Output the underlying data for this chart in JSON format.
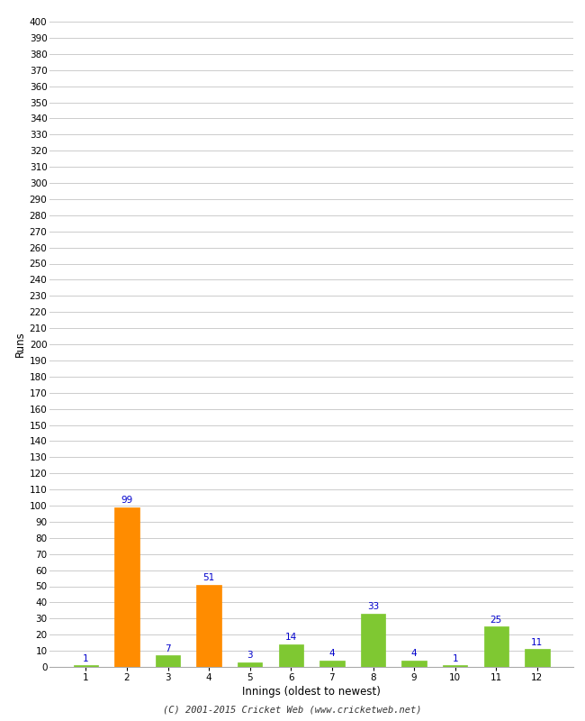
{
  "xlabel": "Innings (oldest to newest)",
  "ylabel": "Runs",
  "categories": [
    1,
    2,
    3,
    4,
    5,
    6,
    7,
    8,
    9,
    10,
    11,
    12
  ],
  "values": [
    1,
    99,
    7,
    51,
    3,
    14,
    4,
    33,
    4,
    1,
    25,
    11
  ],
  "bar_colors": [
    "#7fc832",
    "#ff8c00",
    "#7fc832",
    "#ff8c00",
    "#7fc832",
    "#7fc832",
    "#7fc832",
    "#7fc832",
    "#7fc832",
    "#7fc832",
    "#7fc832",
    "#7fc832"
  ],
  "ylim": [
    0,
    400
  ],
  "ytick_step": 10,
  "annotation_color": "#0000cc",
  "annotation_fontsize": 7.5,
  "axis_label_fontsize": 8.5,
  "tick_fontsize": 7.5,
  "grid_color": "#cccccc",
  "background_color": "#ffffff",
  "footer": "(C) 2001-2015 Cricket Web (www.cricketweb.net)",
  "footer_fontsize": 7.5
}
